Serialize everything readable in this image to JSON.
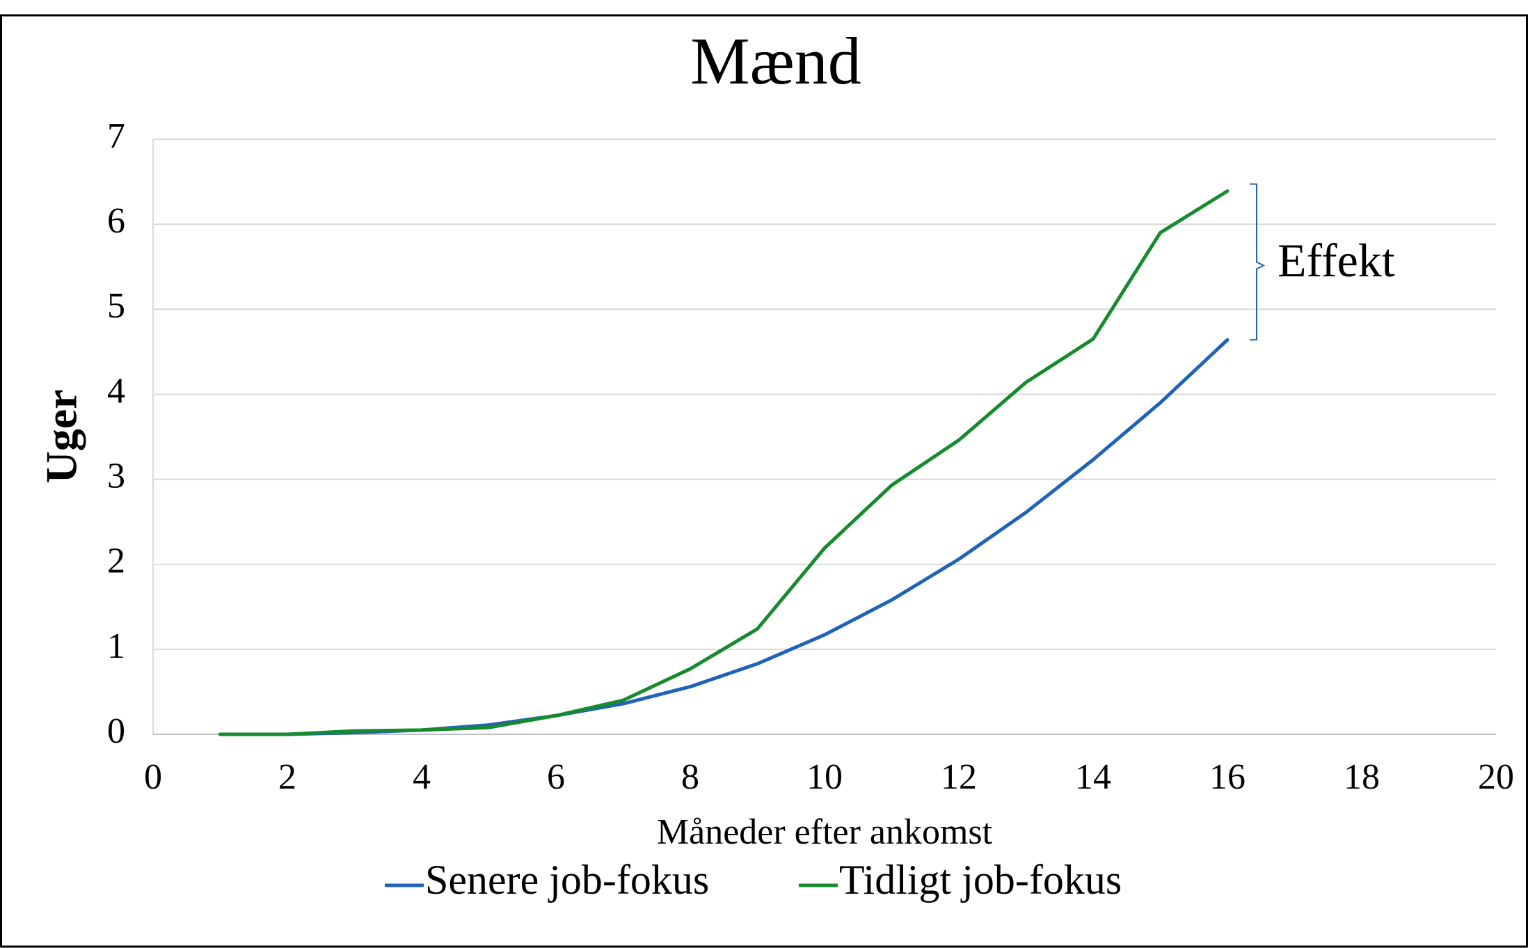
{
  "chart_data": {
    "type": "line",
    "title": "Mænd",
    "x": [
      1,
      2,
      3,
      4,
      5,
      6,
      7,
      8,
      9,
      10,
      11,
      12,
      13,
      14,
      15,
      16
    ],
    "series": [
      {
        "name": "Senere job-fokus",
        "color": "#1f63b8",
        "values": [
          0,
          0,
          0.02,
          0.05,
          0.11,
          0.22,
          0.36,
          0.56,
          0.83,
          1.17,
          1.58,
          2.06,
          2.61,
          3.23,
          3.9,
          4.64
        ]
      },
      {
        "name": "Tidligt job-fokus",
        "color": "#178a2e",
        "values": [
          0,
          0,
          0.04,
          0.05,
          0.08,
          0.22,
          0.4,
          0.77,
          1.24,
          2.19,
          2.93,
          3.46,
          4.14,
          4.65,
          5.9,
          6.39
        ]
      }
    ],
    "xlabel": "Måneder efter ankomst",
    "ylabel": "Uger",
    "xlim": [
      0,
      20
    ],
    "xticks": [
      0,
      2,
      4,
      6,
      8,
      10,
      12,
      14,
      16,
      18,
      20
    ],
    "ylim": [
      0,
      7
    ],
    "yticks": [
      0,
      1,
      2,
      3,
      4,
      5,
      6,
      7
    ],
    "grid": true,
    "legend": "bottom",
    "annotation": "Effekt"
  }
}
